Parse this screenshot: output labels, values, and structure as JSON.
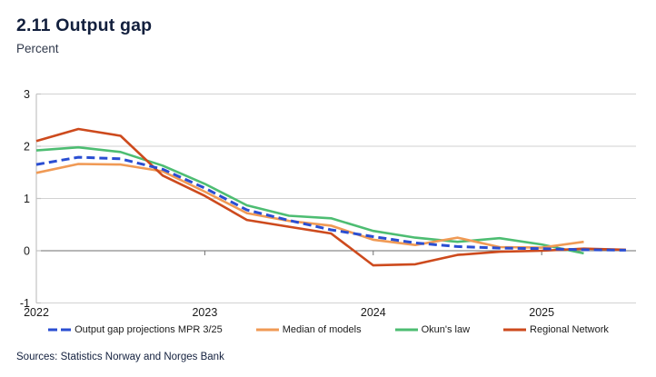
{
  "header": {
    "title": "2.11 Output gap",
    "subtitle": "Percent"
  },
  "footer": {
    "sources": "Sources: Statistics Norway and Norges Bank"
  },
  "colors": {
    "title_navy": "#121f3d",
    "grid_line": "#d2d2d2",
    "zero_line": "#6f6f6f",
    "axis_line": "#c3c3c3",
    "tick_label": "#1a1a1a",
    "legend_text": "#1b1b1b",
    "background": "#ffffff"
  },
  "chart_data": {
    "type": "line",
    "title": "2.11 Output gap",
    "ylabel": "Percent",
    "xlabel": "",
    "x_domain": [
      2022,
      2025.56
    ],
    "ylim": [
      -1,
      3
    ],
    "y_ticks": [
      -1,
      0,
      1,
      2,
      3
    ],
    "x_ticks": [
      2022,
      2023,
      2024,
      2025
    ],
    "grid": "horizontal",
    "legend_position": "bottom",
    "series": [
      {
        "name": "Output gap projections MPR 3/25",
        "color": "#2a4ed2",
        "dash": true,
        "width": 3,
        "x": [
          2022,
          2022.25,
          2022.5,
          2022.75,
          2023,
          2023.25,
          2023.5,
          2023.75,
          2024,
          2024.25,
          2024.5,
          2024.75,
          2025,
          2025.25,
          2025.5
        ],
        "values": [
          1.65,
          1.79,
          1.76,
          1.56,
          1.2,
          0.78,
          0.58,
          0.4,
          0.27,
          0.15,
          0.08,
          0.05,
          0.04,
          0.02,
          0.01
        ]
      },
      {
        "name": "Median of models",
        "color": "#f09a55",
        "dash": false,
        "width": 2.6,
        "x": [
          2022,
          2022.25,
          2022.5,
          2022.75,
          2023,
          2023.25,
          2023.5,
          2023.75,
          2024,
          2024.25,
          2024.5,
          2024.75,
          2025,
          2025.25
        ],
        "values": [
          1.49,
          1.66,
          1.65,
          1.52,
          1.13,
          0.72,
          0.57,
          0.48,
          0.21,
          0.11,
          0.25,
          0.07,
          0.06,
          0.17
        ]
      },
      {
        "name": "Okun's law",
        "color": "#4dbd72",
        "dash": false,
        "width": 2.6,
        "x": [
          2022,
          2022.25,
          2022.5,
          2022.75,
          2023,
          2023.25,
          2023.5,
          2023.75,
          2024,
          2024.25,
          2024.5,
          2024.75,
          2025,
          2025.25
        ],
        "values": [
          1.92,
          1.98,
          1.89,
          1.63,
          1.28,
          0.87,
          0.67,
          0.62,
          0.38,
          0.25,
          0.17,
          0.24,
          0.12,
          -0.05
        ]
      },
      {
        "name": "Regional Network",
        "color": "#cd4a1d",
        "dash": false,
        "width": 2.6,
        "x": [
          2022,
          2022.25,
          2022.5,
          2022.75,
          2023,
          2023.25,
          2023.5,
          2023.75,
          2024,
          2024.25,
          2024.5,
          2024.75,
          2025,
          2025.25,
          2025.5
        ],
        "values": [
          2.1,
          2.33,
          2.2,
          1.44,
          1.05,
          0.59,
          0.46,
          0.33,
          -0.28,
          -0.26,
          -0.08,
          -0.02,
          0.0,
          0.04,
          0.02
        ]
      }
    ]
  }
}
